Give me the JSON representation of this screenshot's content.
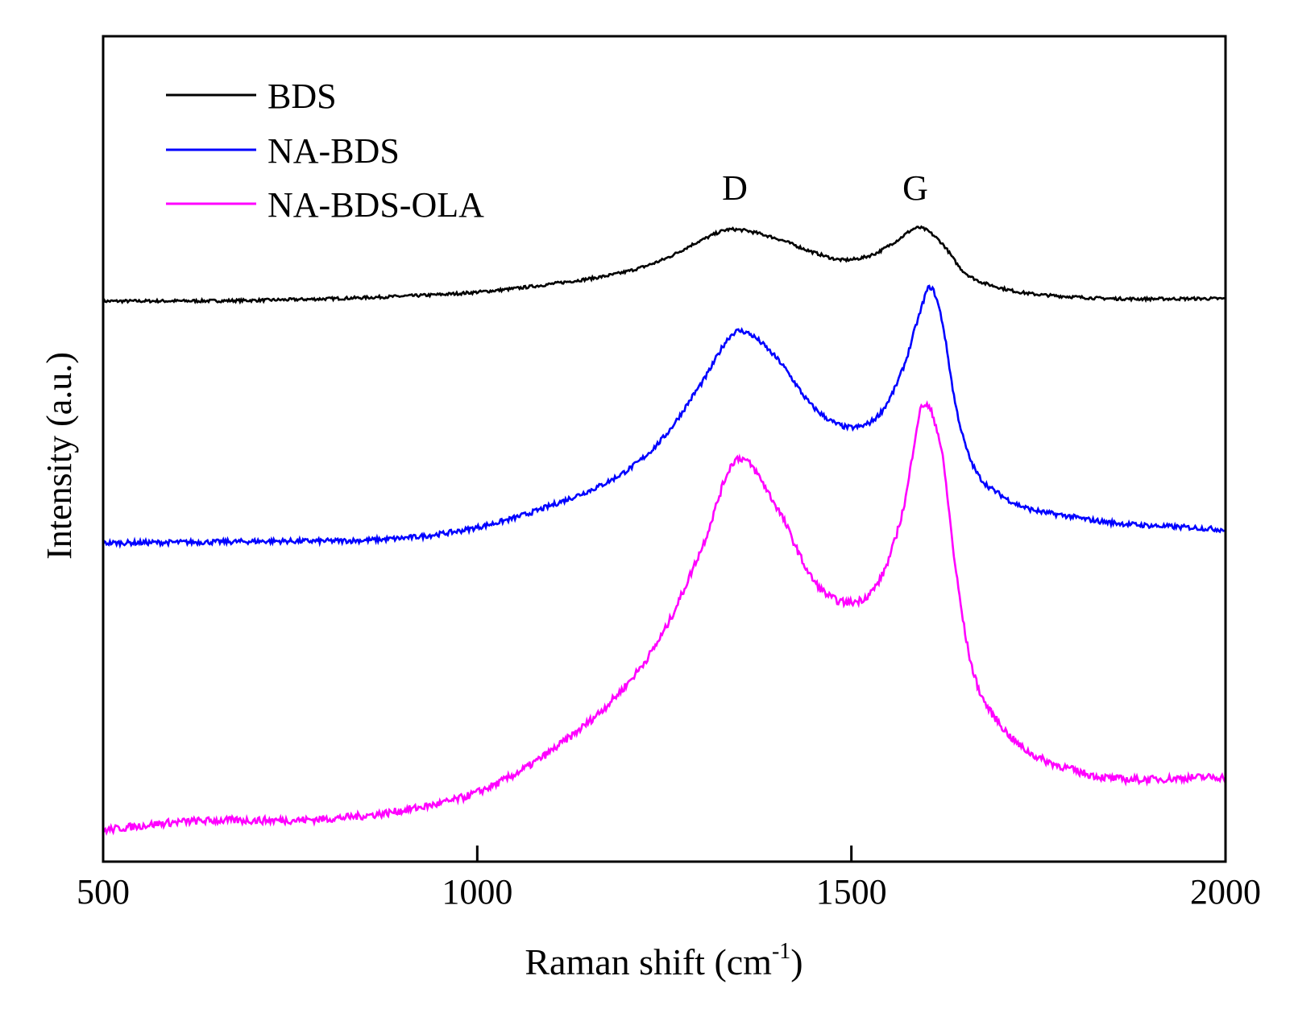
{
  "chart_data": {
    "type": "line",
    "title": "",
    "xlabel": "Raman shift (cm",
    "xlabel_sup": "-1",
    "xlabel_end": ")",
    "ylabel": "Intensity (a.u.)",
    "xlim": [
      500,
      2000
    ],
    "ylim": [
      0,
      100
    ],
    "xticks": [
      500,
      1000,
      1500,
      2000
    ],
    "xtick_labels": [
      "500",
      "1000",
      "1500",
      "2000"
    ],
    "grid": false,
    "legend_placement": "top-left",
    "annotations": [
      {
        "text": "D",
        "x": 1345
      },
      {
        "text": "G",
        "x": 1590
      }
    ],
    "series": [
      {
        "name": "BDS",
        "color": "#000000",
        "x": [
          500,
          700,
          900,
          1000,
          1100,
          1200,
          1250,
          1300,
          1340,
          1400,
          1450,
          1490,
          1530,
          1560,
          1590,
          1620,
          1650,
          1700,
          1800,
          2000
        ],
        "y": [
          67.9,
          68.0,
          68.5,
          69.0,
          70.0,
          71.5,
          73.0,
          75.3,
          76.6,
          75.5,
          73.8,
          72.9,
          73.6,
          75.2,
          76.8,
          75.0,
          71.5,
          69.5,
          68.4,
          68.2
        ]
      },
      {
        "name": "NA-BDS",
        "color": "#0000ff",
        "x": [
          500,
          700,
          900,
          1000,
          1100,
          1200,
          1250,
          1300,
          1350,
          1400,
          1450,
          1500,
          1540,
          1570,
          1590,
          1605,
          1620,
          1640,
          1660,
          1700,
          1800,
          2000
        ],
        "y": [
          38.6,
          38.8,
          39.2,
          40.5,
          43.2,
          47.4,
          51.5,
          58.0,
          64.3,
          61.0,
          55.0,
          52.6,
          54.5,
          60.0,
          66.0,
          69.6,
          66.0,
          55.0,
          48.5,
          44.4,
          41.7,
          40.2
        ]
      },
      {
        "name": "NA-BDS-OLA",
        "color": "#ff00ff",
        "x": [
          500,
          600,
          800,
          900,
          1000,
          1100,
          1200,
          1250,
          1300,
          1350,
          1400,
          1450,
          1495,
          1540,
          1570,
          1597,
          1620,
          1640,
          1660,
          1700,
          1800,
          2000
        ],
        "y": [
          3.8,
          4.8,
          5.2,
          6.2,
          8.4,
          13.5,
          21.5,
          28.0,
          38.0,
          48.9,
          43.0,
          34.0,
          31.4,
          34.5,
          43.0,
          55.4,
          50.0,
          35.0,
          24.0,
          16.5,
          11.0,
          10.2
        ]
      }
    ]
  }
}
